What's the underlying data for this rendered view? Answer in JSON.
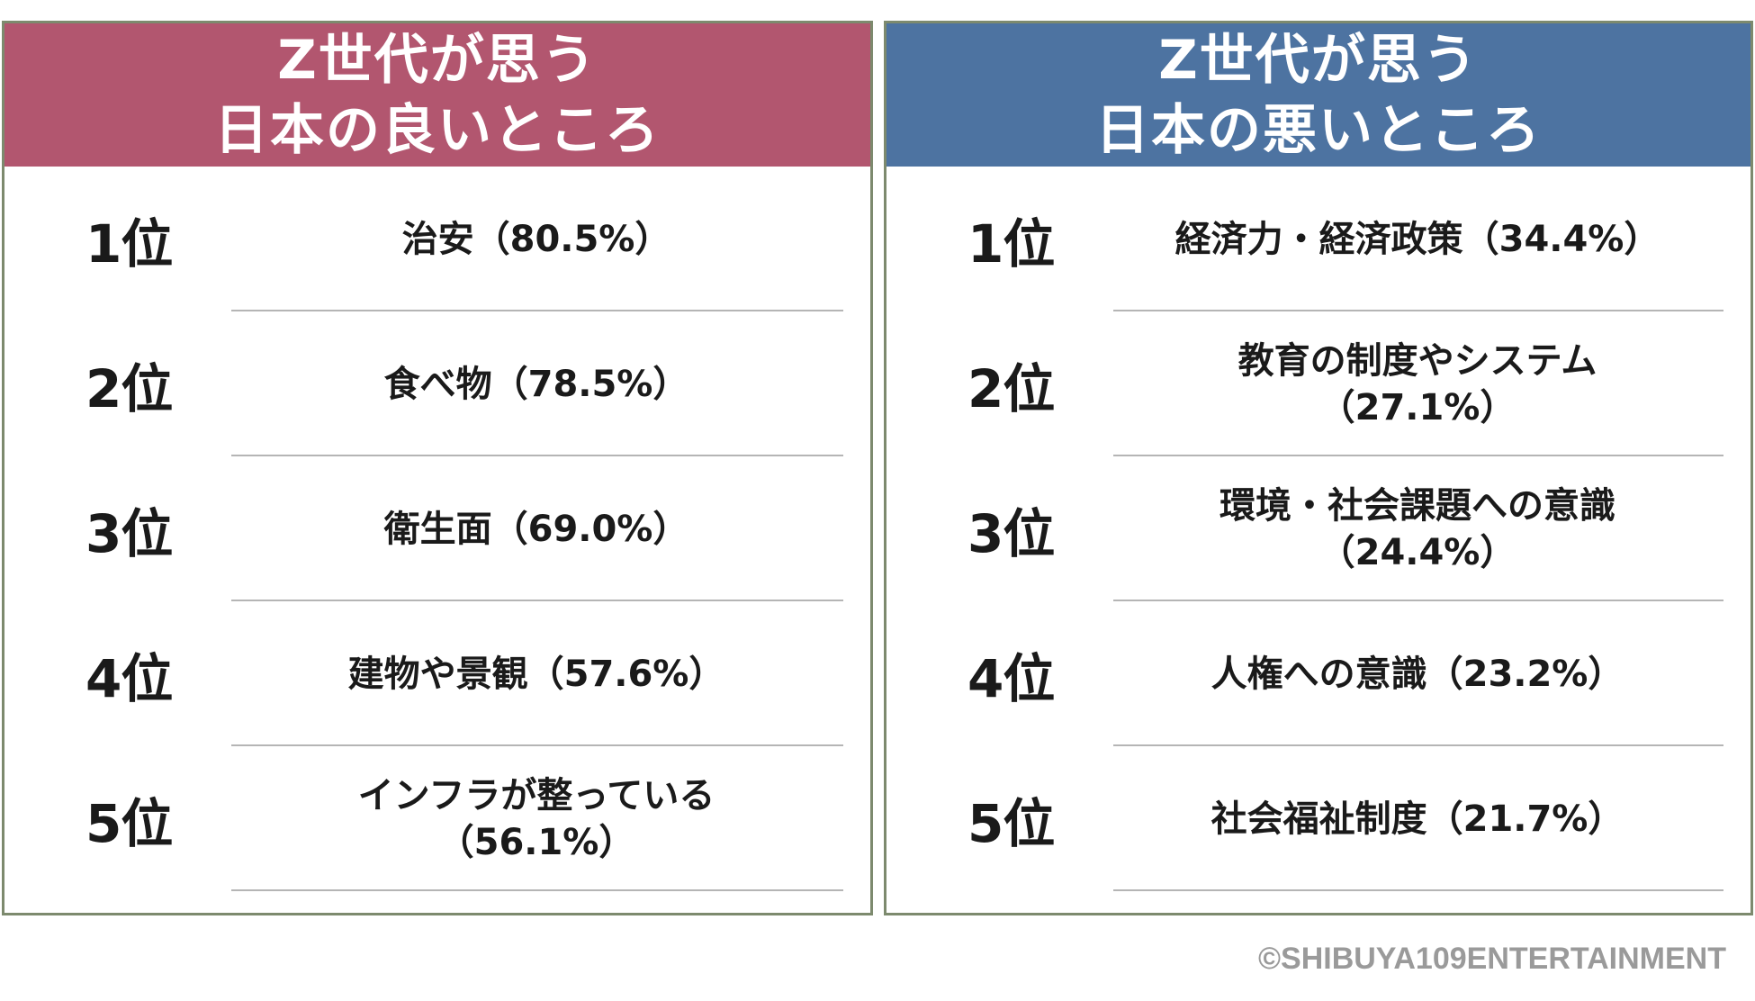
{
  "left_panel": {
    "title_line1": "Z世代が思う",
    "title_line2": "日本の良いところ",
    "header_color": "#b2566f",
    "rows": [
      {
        "rank": "1位",
        "line1": "治安（80.5%）",
        "line2": ""
      },
      {
        "rank": "2位",
        "line1": "食べ物（78.5%）",
        "line2": ""
      },
      {
        "rank": "3位",
        "line1": "衛生面（69.0%）",
        "line2": ""
      },
      {
        "rank": "4位",
        "line1": "建物や景観（57.6%）",
        "line2": ""
      },
      {
        "rank": "5位",
        "line1": "インフラが整っている",
        "line2": "（56.1%）"
      }
    ]
  },
  "right_panel": {
    "title_line1": "Z世代が思う",
    "title_line2": "日本の悪いところ",
    "header_color": "#4d73a1",
    "rows": [
      {
        "rank": "1位",
        "line1": "経済力・経済政策（34.4%）",
        "line2": ""
      },
      {
        "rank": "2位",
        "line1": "教育の制度やシステム",
        "line2": "（27.1%）"
      },
      {
        "rank": "3位",
        "line1": "環境・社会課題への意識",
        "line2": "（24.4%）"
      },
      {
        "rank": "4位",
        "line1": "人権への意識（23.2%）",
        "line2": ""
      },
      {
        "rank": "5位",
        "line1": "社会福祉制度（21.7%）",
        "line2": ""
      }
    ]
  },
  "copyright": "©SHIBUYA109ENTERTAINMENT"
}
